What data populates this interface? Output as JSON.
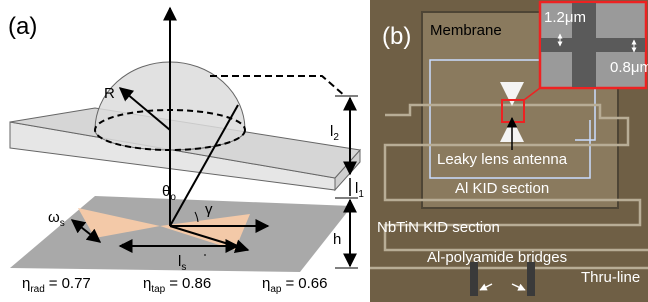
{
  "panel_a": {
    "label": "(a)",
    "radius": "R",
    "l2": {
      "symbol": "l",
      "subscript": "2"
    },
    "l1": {
      "symbol": "l",
      "subscript": "1"
    },
    "theta": {
      "symbol": "θ",
      "subscript": "o"
    },
    "gamma": "γ",
    "omega": {
      "symbol": "ω",
      "subscript": "s"
    },
    "height": "h",
    "ls": {
      "symbol": "l",
      "subscript": "s"
    },
    "efficiencies": [
      {
        "symbol": "η",
        "subscript": "rad",
        "relation": "=",
        "value": 0.77
      },
      {
        "symbol": "η",
        "subscript": "tap",
        "relation": "=",
        "value": 0.86
      },
      {
        "symbol": "η",
        "subscript": "ap",
        "relation": "=",
        "value": 0.66
      }
    ]
  },
  "panel_b": {
    "label": "(b)",
    "membrane": "Membrane",
    "inset_width_1": "1.2μm",
    "inset_width_2": "0.8μm",
    "antenna": "Leaky lens antenna",
    "al_section": "Al KID section",
    "nbtin_section": "NbTiN KID section",
    "bridges": "Al-polyamide bridges",
    "thru_line": "Thru-line"
  }
}
